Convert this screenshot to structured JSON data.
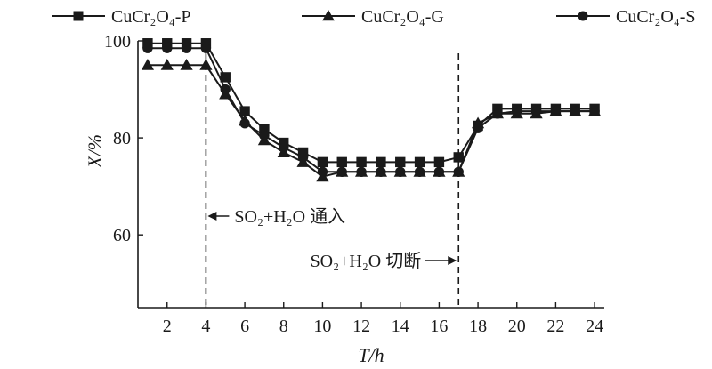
{
  "chart_data": {
    "type": "line",
    "xlabel": "T/h",
    "ylabel": "X/%",
    "xlim": [
      0.5,
      24.5
    ],
    "ylim": [
      45,
      100
    ],
    "x_ticks": [
      2,
      4,
      6,
      8,
      10,
      12,
      14,
      16,
      18,
      20,
      22,
      24
    ],
    "y_ticks": [
      60,
      80,
      100
    ],
    "grid": false,
    "legend_position": "top",
    "x": [
      1,
      2,
      3,
      4,
      5,
      6,
      7,
      8,
      9,
      10,
      11,
      12,
      13,
      14,
      15,
      16,
      17,
      18,
      19,
      20,
      21,
      22,
      23,
      24
    ],
    "series": [
      {
        "name": "CuCr₂O₄-P",
        "marker": "square",
        "values": [
          99.5,
          99.5,
          99.5,
          99.5,
          92.5,
          85.5,
          81.8,
          79,
          77,
          75,
          75,
          75,
          75,
          75,
          75,
          75,
          76,
          82.5,
          86,
          86,
          86,
          86,
          86,
          86
        ]
      },
      {
        "name": "CuCr₂O₄-G",
        "marker": "triangle",
        "values": [
          95,
          95,
          95,
          95,
          89,
          83.5,
          79.5,
          77,
          75,
          72,
          73,
          73,
          73,
          73,
          73,
          73,
          73,
          83,
          85,
          85,
          85,
          85.5,
          85.5,
          85.5
        ]
      },
      {
        "name": "CuCr₂O₄-S",
        "marker": "circle",
        "values": [
          98.5,
          98.5,
          98.5,
          98.5,
          90,
          83,
          80.5,
          78,
          76,
          73,
          73,
          73,
          73,
          73,
          73,
          73,
          73,
          82,
          85,
          85.5,
          85.5,
          85.5,
          85.5,
          85.5
        ]
      }
    ],
    "annotations": [
      {
        "text": "SO₂+H₂O 通入",
        "x": 4,
        "arrow": "left"
      },
      {
        "text": "SO₂+H₂O 切断",
        "x": 17,
        "arrow": "right"
      }
    ]
  },
  "colors": {
    "ink": "#1a1a1a",
    "background": "#ffffff"
  }
}
